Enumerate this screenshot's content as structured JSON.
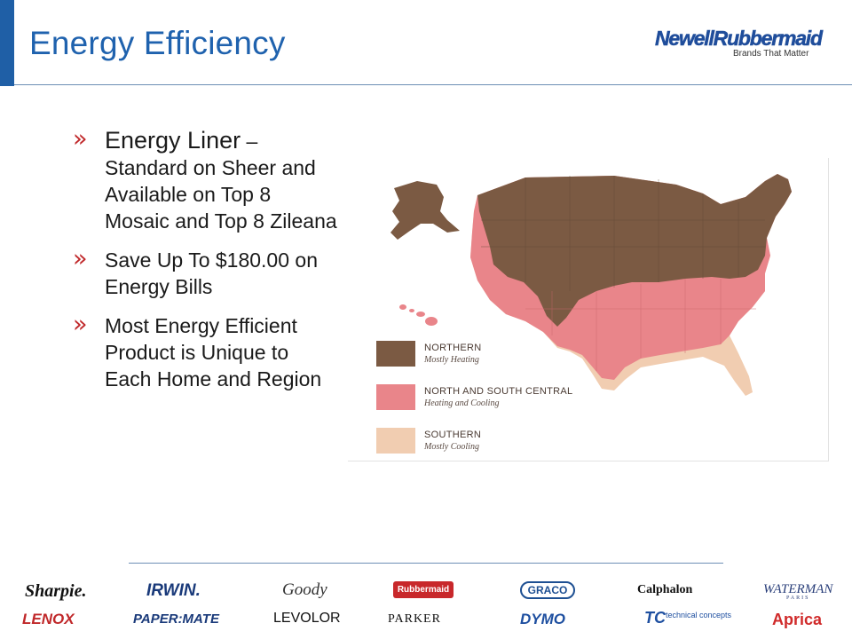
{
  "title": "Energy Efficiency",
  "logo": {
    "name": "NewellRubbermaid",
    "tagline": "Brands That Matter"
  },
  "bullets": [
    {
      "lead": "Energy Liner",
      "rest": " – Standard on Sheer and Available on Top 8 Mosaic and Top 8 Zileana"
    },
    {
      "lead": "",
      "rest": "Save Up To $180.00 on Energy Bills"
    },
    {
      "lead": "",
      "rest": "Most Energy Efficient Product is Unique to Each Home and Region"
    }
  ],
  "bullet_marker": "»",
  "map": {
    "legend": [
      {
        "title": "NORTHERN",
        "subtitle": "Mostly Heating",
        "color": "#7b5a43"
      },
      {
        "title": "NORTH AND SOUTH CENTRAL",
        "subtitle": "Heating and Cooling",
        "color": "#e9858a"
      },
      {
        "title": "SOUTHERN",
        "subtitle": "Mostly Cooling",
        "color": "#f1cdb1"
      }
    ]
  },
  "brands": {
    "row1": [
      "Sharpie.",
      "IRWIN.",
      "Goody",
      "Rubbermaid",
      "GRACO",
      "Calphalon",
      "WATERMAN"
    ],
    "waterman_sub": "PARIS",
    "row2": [
      "LENOX",
      "PAPER:MATE",
      "LEVOLOR",
      "PARKER",
      "DYMO",
      "TC",
      "Aprica"
    ],
    "tc_text": "technical concepts"
  },
  "colors": {
    "accent": "#1f62ae",
    "bullet": "#c0282a",
    "northern": "#7b5a43",
    "central": "#e9858a",
    "southern": "#f1cdb1"
  }
}
